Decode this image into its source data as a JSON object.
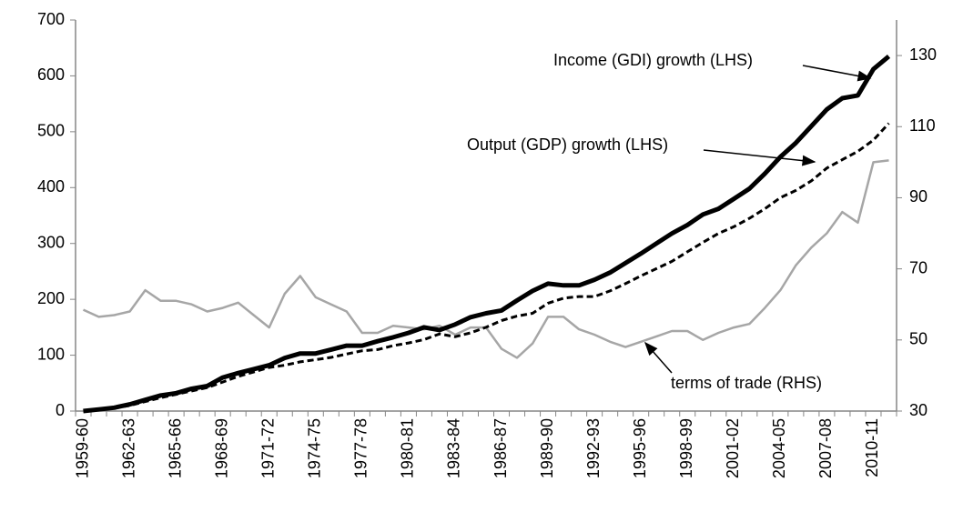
{
  "chart_data": {
    "type": "line",
    "categories": [
      "1959-60",
      null,
      null,
      "1962-63",
      null,
      null,
      "1965-66",
      null,
      null,
      "1968-69",
      null,
      null,
      "1971-72",
      null,
      null,
      "1974-75",
      null,
      null,
      "1977-78",
      null,
      null,
      "1980-81",
      null,
      null,
      "1983-84",
      null,
      null,
      "1986-87",
      null,
      null,
      "1989-90",
      null,
      null,
      "1992-93",
      null,
      null,
      "1995-96",
      null,
      null,
      "1998-99",
      null,
      null,
      "2001-02",
      null,
      null,
      "2004-05",
      null,
      null,
      "2007-08",
      null,
      null,
      "2010-11",
      null
    ],
    "series": [
      {
        "name": "Income (GDI) growth (LHS)",
        "color": "#000000",
        "values": [
          0,
          3,
          6,
          12,
          20,
          28,
          32,
          40,
          45,
          60,
          68,
          75,
          82,
          95,
          103,
          103,
          110,
          117,
          117,
          125,
          132,
          140,
          150,
          145,
          155,
          168,
          175,
          180,
          198,
          215,
          228,
          225,
          225,
          235,
          248,
          265,
          282,
          300,
          318,
          333,
          352,
          362,
          380,
          398,
          425,
          455,
          480,
          510,
          540,
          560,
          565,
          612,
          635
        ]
      },
      {
        "name": "Output (GDP) growth (LHS)",
        "color": "#000000",
        "dashed": true,
        "values": [
          0,
          2,
          5,
          10,
          17,
          24,
          30,
          36,
          42,
          52,
          62,
          70,
          78,
          82,
          88,
          92,
          96,
          102,
          108,
          110,
          117,
          122,
          128,
          138,
          133,
          140,
          150,
          162,
          170,
          175,
          193,
          202,
          205,
          205,
          215,
          228,
          242,
          255,
          268,
          285,
          302,
          318,
          330,
          345,
          362,
          382,
          395,
          412,
          435,
          450,
          465,
          485,
          515
        ]
      },
      {
        "name": "terms of trade (RHS)",
        "color": "#a6a6a6",
        "axis": "y2",
        "values": [
          58.5,
          56.5,
          57,
          58,
          64,
          61,
          61,
          60,
          58,
          59,
          60.5,
          57,
          53.5,
          63,
          68,
          62,
          60,
          58,
          52,
          52,
          54,
          53.5,
          53,
          54,
          51.5,
          53.5,
          53.5,
          47.5,
          45,
          49,
          56.5,
          56.5,
          53,
          51.5,
          49.5,
          48,
          49.5,
          51,
          52.5,
          52.5,
          50,
          52,
          53.5,
          54.5,
          59,
          64,
          71,
          76,
          80,
          86,
          83,
          100,
          100.5
        ]
      }
    ],
    "ylim": [
      0,
      700
    ],
    "yticks": [
      0,
      100,
      200,
      300,
      400,
      500,
      600,
      700
    ],
    "y2lim": [
      30,
      140
    ],
    "y2ticks": [
      30,
      50,
      70,
      90,
      110,
      130
    ]
  }
}
